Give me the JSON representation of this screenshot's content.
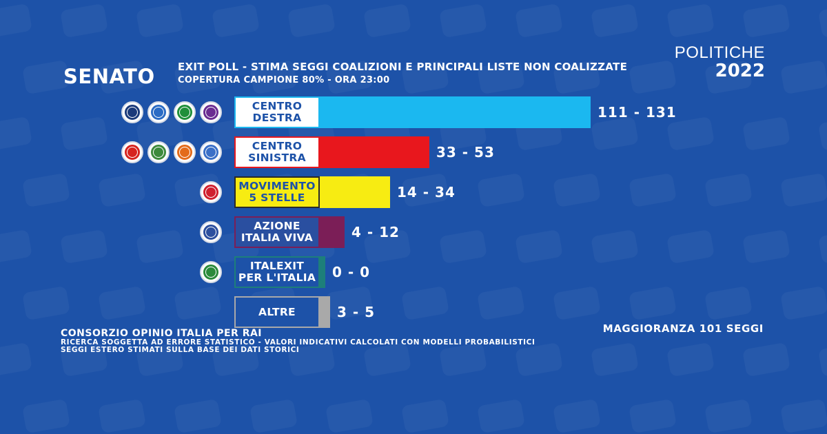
{
  "header": {
    "chamber": "SENATO",
    "title": "EXIT POLL - STIMA SEGGI COALIZIONI E PRINCIPALI LISTE NON COALIZZATE",
    "subtitle": "COPERTURA CAMPIONE 80% - ORA 23:00",
    "brand_top": "POLITICHE",
    "brand_year": "2022"
  },
  "chart_data": {
    "type": "bar",
    "orientation": "horizontal",
    "categories": [
      "CENTRO DESTRA",
      "CENTRO SINISTRA",
      "MOVIMENTO 5 STELLE",
      "AZIONE ITALIA VIVA",
      "ITALEXIT PER L'ITALIA",
      "ALTRE"
    ],
    "display_labels": [
      "CENTRO\nDESTRA",
      "CENTRO\nSINISTRA",
      "MOVIMENTO\n5 STELLE",
      "AZIONE\nITALIA VIVA",
      "ITALEXIT\nPER L'ITALIA",
      "ALTRE"
    ],
    "ranges": [
      [
        111,
        131
      ],
      [
        33,
        53
      ],
      [
        14,
        34
      ],
      [
        4,
        12
      ],
      [
        0,
        0
      ],
      [
        3,
        5
      ]
    ],
    "range_labels": [
      "111 - 131",
      "33 - 53",
      "14 - 34",
      "4 - 12",
      "0 - 0",
      "3 - 5"
    ],
    "colors": [
      "#1bb8f0",
      "#e8171d",
      "#f7ec12",
      "#7b1e57",
      "#1d7f7a",
      "#a9a9a9"
    ],
    "title": "EXIT POLL - STIMA SEGGI COALIZIONI E PRINCIPALI LISTE NON COALIZZATE",
    "xlabel": "",
    "ylabel": "",
    "xlim": [
      0,
      131
    ],
    "grid": false
  },
  "logos": [
    [
      "fratelli-d-italia-logo",
      "lega-logo",
      "forza-italia-logo",
      "noi-moderati-logo"
    ],
    [
      "pd-logo",
      "impegno-civico-logo",
      "verdi-sinistra-logo",
      "piu-europa-logo"
    ],
    [
      "movimento-5-stelle-logo"
    ],
    [
      "azione-italia-viva-logo"
    ],
    [
      "italexit-logo"
    ],
    []
  ],
  "logo_colors": [
    [
      "#1b3a7a",
      "#2a6bc4",
      "#1f8f3a",
      "#6b2c91"
    ],
    [
      "#d6231f",
      "#3d8a3c",
      "#e36b1a",
      "#3a6fc7"
    ],
    [
      "#d01f2e"
    ],
    [
      "#2c4f9e"
    ],
    [
      "#2a8a3a"
    ],
    []
  ],
  "footer": {
    "source": "CONSORZIO OPINIO ITALIA PER RAI",
    "note1": "RICERCA SOGGETTA AD ERRORE STATISTICO - VALORI INDICATIVI CALCOLATI CON MODELLI PROBABILISTICI",
    "note2": "SEGGI ESTERO STIMATI SULLA BASE DEI DATI STORICI",
    "majority": "MAGGIORANZA 101 SEGGI"
  }
}
